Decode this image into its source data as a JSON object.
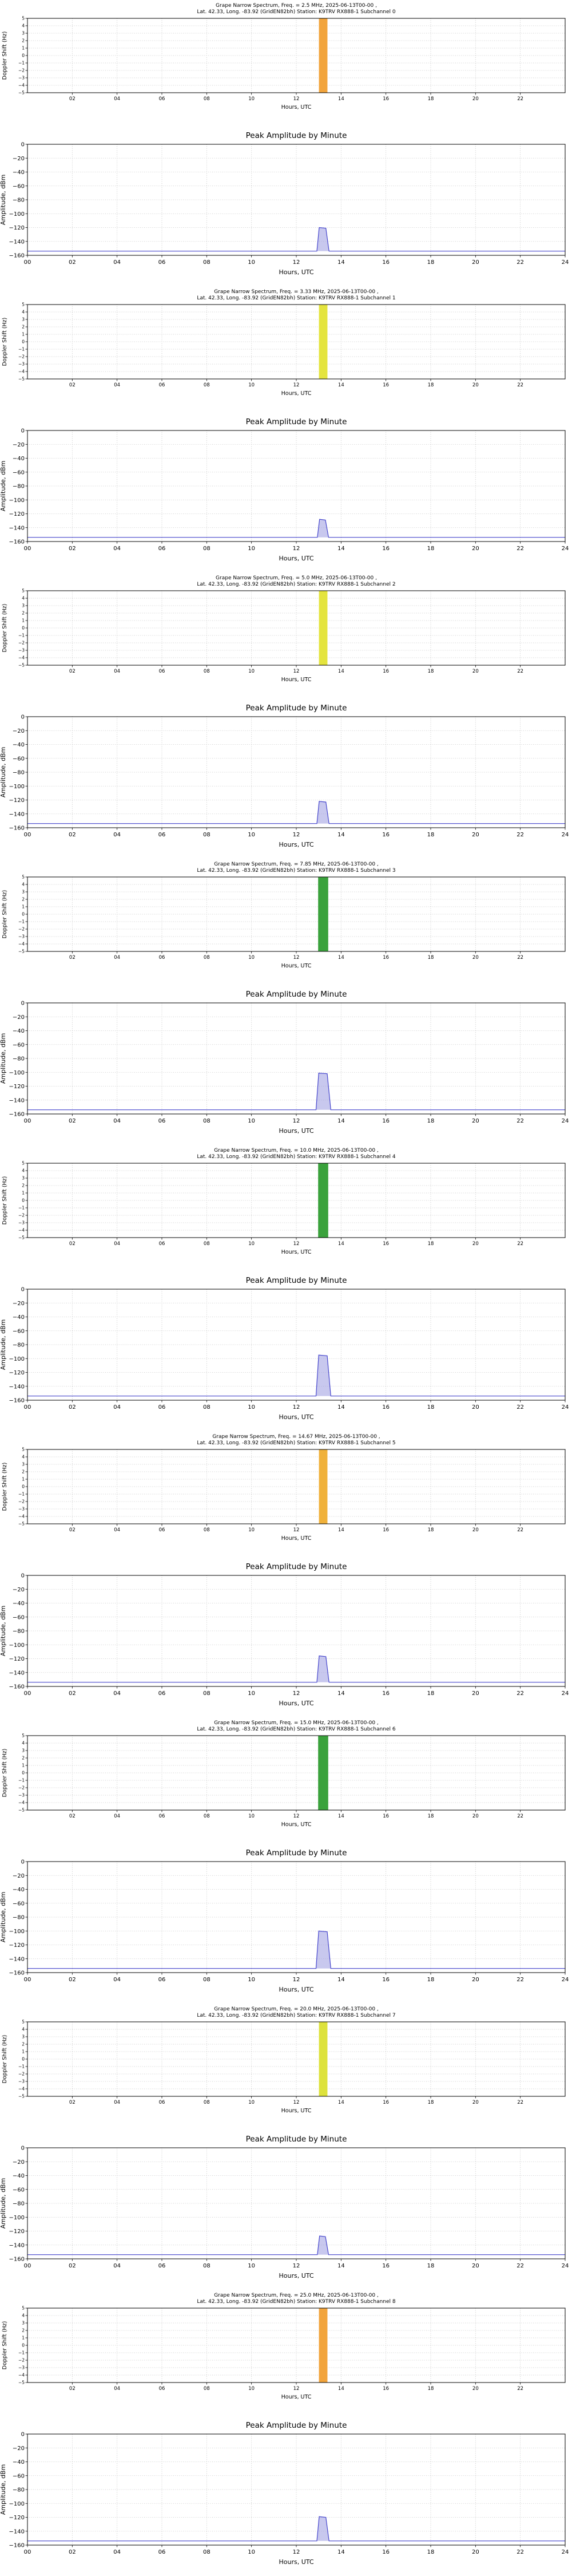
{
  "page": {
    "background": "#ffffff",
    "date": "2025-06-13",
    "station": "K9TRV RX888-1",
    "location": "Lat. 42.33, Long. -83.92 (GridEN82bh)"
  },
  "chart_data": {
    "spectrum_common": {
      "type": "heatmap",
      "xlabel": "Hours, UTC",
      "ylabel": "Doppler Shift (Hz)",
      "xlim": [
        0,
        24
      ],
      "ylim": [
        -5,
        5
      ],
      "xtick_values": [
        2,
        4,
        6,
        8,
        10,
        12,
        14,
        16,
        18,
        20,
        22
      ],
      "xtick_labels": [
        "02",
        "04",
        "06",
        "08",
        "10",
        "12",
        "14",
        "16",
        "18",
        "20",
        "22"
      ],
      "ytick_values": [
        5,
        4,
        3,
        2,
        1,
        0,
        -1,
        -2,
        -3,
        -4,
        -5
      ],
      "ytick_labels": [
        "5",
        "4",
        "3",
        "2",
        "1",
        "0",
        "−1",
        "−2",
        "−3",
        "−4",
        "−5"
      ],
      "grid": true,
      "background": "#ffffff"
    },
    "amplitude_common": {
      "type": "line",
      "title": "Peak Amplitude by Minute",
      "xlabel": "Hours, UTC",
      "ylabel": "Amplitude, dBm",
      "xlim": [
        0,
        24
      ],
      "ylim": [
        -160,
        0
      ],
      "xtick_values": [
        0,
        2,
        4,
        6,
        8,
        10,
        12,
        14,
        16,
        18,
        20,
        22,
        24
      ],
      "xtick_labels": [
        "00",
        "02",
        "04",
        "06",
        "08",
        "10",
        "12",
        "14",
        "16",
        "18",
        "20",
        "22",
        "24"
      ],
      "ytick_values": [
        0,
        -20,
        -40,
        -60,
        -80,
        -100,
        -120,
        -140,
        -160
      ],
      "ytick_labels": [
        "0",
        "−20",
        "−40",
        "−60",
        "−80",
        "−100",
        "−120",
        "−140",
        "−160"
      ],
      "line_color": "#4444cc",
      "fill_color": "#9b9be0",
      "grid": true
    },
    "channels": [
      {
        "subchannel": 0,
        "freq_mhz": 2.5,
        "spectrum_title_line1": "Grape Narrow Spectrum, Freq. = 2.5 MHz, 2025-06-13T00-00 ,",
        "spectrum_title_line2": "Lat. 42.33, Long. -83.92 (GridEN82bh) Station: K9TRV RX888-1 Subchannel 0",
        "stripe": {
          "center_hour": 13.2,
          "width_hours": 0.38,
          "color": "#f2a43c"
        },
        "amplitude_points": [
          [
            0,
            -154
          ],
          [
            12.92,
            -154
          ],
          [
            13.02,
            -120
          ],
          [
            13.32,
            -121
          ],
          [
            13.46,
            -154
          ],
          [
            24,
            -154
          ]
        ],
        "peak_dbm": -120
      },
      {
        "subchannel": 1,
        "freq_mhz": 3.33,
        "spectrum_title_line1": "Grape Narrow Spectrum, Freq. = 3.33 MHz, 2025-06-13T00-00 ,",
        "spectrum_title_line2": "Lat. 42.33, Long. -83.92 (GridEN82bh) Station: K9TRV RX888-1 Subchannel 1",
        "stripe": {
          "center_hour": 13.2,
          "width_hours": 0.38,
          "color": "#e4e43e"
        },
        "amplitude_points": [
          [
            0,
            -154
          ],
          [
            12.94,
            -154
          ],
          [
            13.04,
            -128
          ],
          [
            13.3,
            -129
          ],
          [
            13.44,
            -154
          ],
          [
            24,
            -154
          ]
        ],
        "peak_dbm": -128
      },
      {
        "subchannel": 2,
        "freq_mhz": 5.0,
        "spectrum_title_line1": "Grape Narrow Spectrum, Freq. = 5.0 MHz, 2025-06-13T00-00 ,",
        "spectrum_title_line2": "Lat. 42.33, Long. -83.92 (GridEN82bh) Station: K9TRV RX888-1 Subchannel 2",
        "stripe": {
          "center_hour": 13.2,
          "width_hours": 0.38,
          "color": "#e4e43e"
        },
        "amplitude_points": [
          [
            0,
            -154
          ],
          [
            12.92,
            -154
          ],
          [
            13.02,
            -122
          ],
          [
            13.32,
            -123
          ],
          [
            13.46,
            -154
          ],
          [
            24,
            -154
          ]
        ],
        "peak_dbm": -122
      },
      {
        "subchannel": 3,
        "freq_mhz": 7.85,
        "spectrum_title_line1": "Grape Narrow Spectrum, Freq. = 7.85 MHz, 2025-06-13T00-00 ,",
        "spectrum_title_line2": "Lat. 42.33, Long. -83.92 (GridEN82bh) Station: K9TRV RX888-1 Subchannel 3",
        "stripe": {
          "center_hour": 13.2,
          "width_hours": 0.45,
          "color": "#3aa23c"
        },
        "amplitude_points": [
          [
            0,
            -154
          ],
          [
            12.88,
            -154
          ],
          [
            13.0,
            -101
          ],
          [
            13.38,
            -102
          ],
          [
            13.54,
            -154
          ],
          [
            24,
            -154
          ]
        ],
        "peak_dbm": -101
      },
      {
        "subchannel": 4,
        "freq_mhz": 10.0,
        "spectrum_title_line1": "Grape Narrow Spectrum, Freq. = 10.0 MHz, 2025-06-13T00-00 ,",
        "spectrum_title_line2": "Lat. 42.33, Long. -83.92 (GridEN82bh) Station: K9TRV RX888-1 Subchannel 4",
        "stripe": {
          "center_hour": 13.2,
          "width_hours": 0.45,
          "color": "#3aa23c"
        },
        "amplitude_points": [
          [
            0,
            -154
          ],
          [
            12.88,
            -154
          ],
          [
            13.0,
            -95
          ],
          [
            13.38,
            -96
          ],
          [
            13.54,
            -154
          ],
          [
            24,
            -154
          ]
        ],
        "peak_dbm": -95
      },
      {
        "subchannel": 5,
        "freq_mhz": 14.67,
        "spectrum_title_line1": "Grape Narrow Spectrum, Freq. = 14.67 MHz, 2025-06-13T00-00 ,",
        "spectrum_title_line2": "Lat. 42.33, Long. -83.92 (GridEN82bh) Station: K9TRV RX888-1 Subchannel 5",
        "stripe": {
          "center_hour": 13.2,
          "width_hours": 0.38,
          "color": "#f0b13a"
        },
        "amplitude_points": [
          [
            0,
            -154
          ],
          [
            12.92,
            -154
          ],
          [
            13.02,
            -116
          ],
          [
            13.32,
            -117
          ],
          [
            13.46,
            -154
          ],
          [
            24,
            -154
          ]
        ],
        "peak_dbm": -116
      },
      {
        "subchannel": 6,
        "freq_mhz": 15.0,
        "spectrum_title_line1": "Grape Narrow Spectrum, Freq. = 15.0 MHz, 2025-06-13T00-00 ,",
        "spectrum_title_line2": "Lat. 42.33, Long. -83.92 (GridEN82bh) Station: K9TRV RX888-1 Subchannel 6",
        "stripe": {
          "center_hour": 13.2,
          "width_hours": 0.45,
          "color": "#3aa23c"
        },
        "amplitude_points": [
          [
            0,
            -154
          ],
          [
            12.88,
            -154
          ],
          [
            13.0,
            -100
          ],
          [
            13.38,
            -101
          ],
          [
            13.54,
            -154
          ],
          [
            24,
            -154
          ]
        ],
        "peak_dbm": -100
      },
      {
        "subchannel": 7,
        "freq_mhz": 20.0,
        "spectrum_title_line1": "Grape Narrow Spectrum, Freq. = 20.0 MHz, 2025-06-13T00-00 ,",
        "spectrum_title_line2": "Lat. 42.33, Long. -83.92 (GridEN82bh) Station: K9TRV RX888-1 Subchannel 7",
        "stripe": {
          "center_hour": 13.2,
          "width_hours": 0.38,
          "color": "#dde23c"
        },
        "amplitude_points": [
          [
            0,
            -154
          ],
          [
            12.94,
            -154
          ],
          [
            13.04,
            -127
          ],
          [
            13.3,
            -128
          ],
          [
            13.44,
            -154
          ],
          [
            24,
            -154
          ]
        ],
        "peak_dbm": -127
      },
      {
        "subchannel": 8,
        "freq_mhz": 25.0,
        "spectrum_title_line1": "Grape Narrow Spectrum, Freq. = 25.0 MHz, 2025-06-13T00-00 ,",
        "spectrum_title_line2": "Lat. 42.33, Long. -83.92 (GridEN82bh) Station: K9TRV RX888-1 Subchannel 8",
        "stripe": {
          "center_hour": 13.2,
          "width_hours": 0.38,
          "color": "#f2a43c"
        },
        "amplitude_points": [
          [
            0,
            -154
          ],
          [
            12.92,
            -154
          ],
          [
            13.02,
            -119
          ],
          [
            13.32,
            -120
          ],
          [
            13.46,
            -154
          ],
          [
            24,
            -154
          ]
        ],
        "peak_dbm": -119
      }
    ]
  }
}
